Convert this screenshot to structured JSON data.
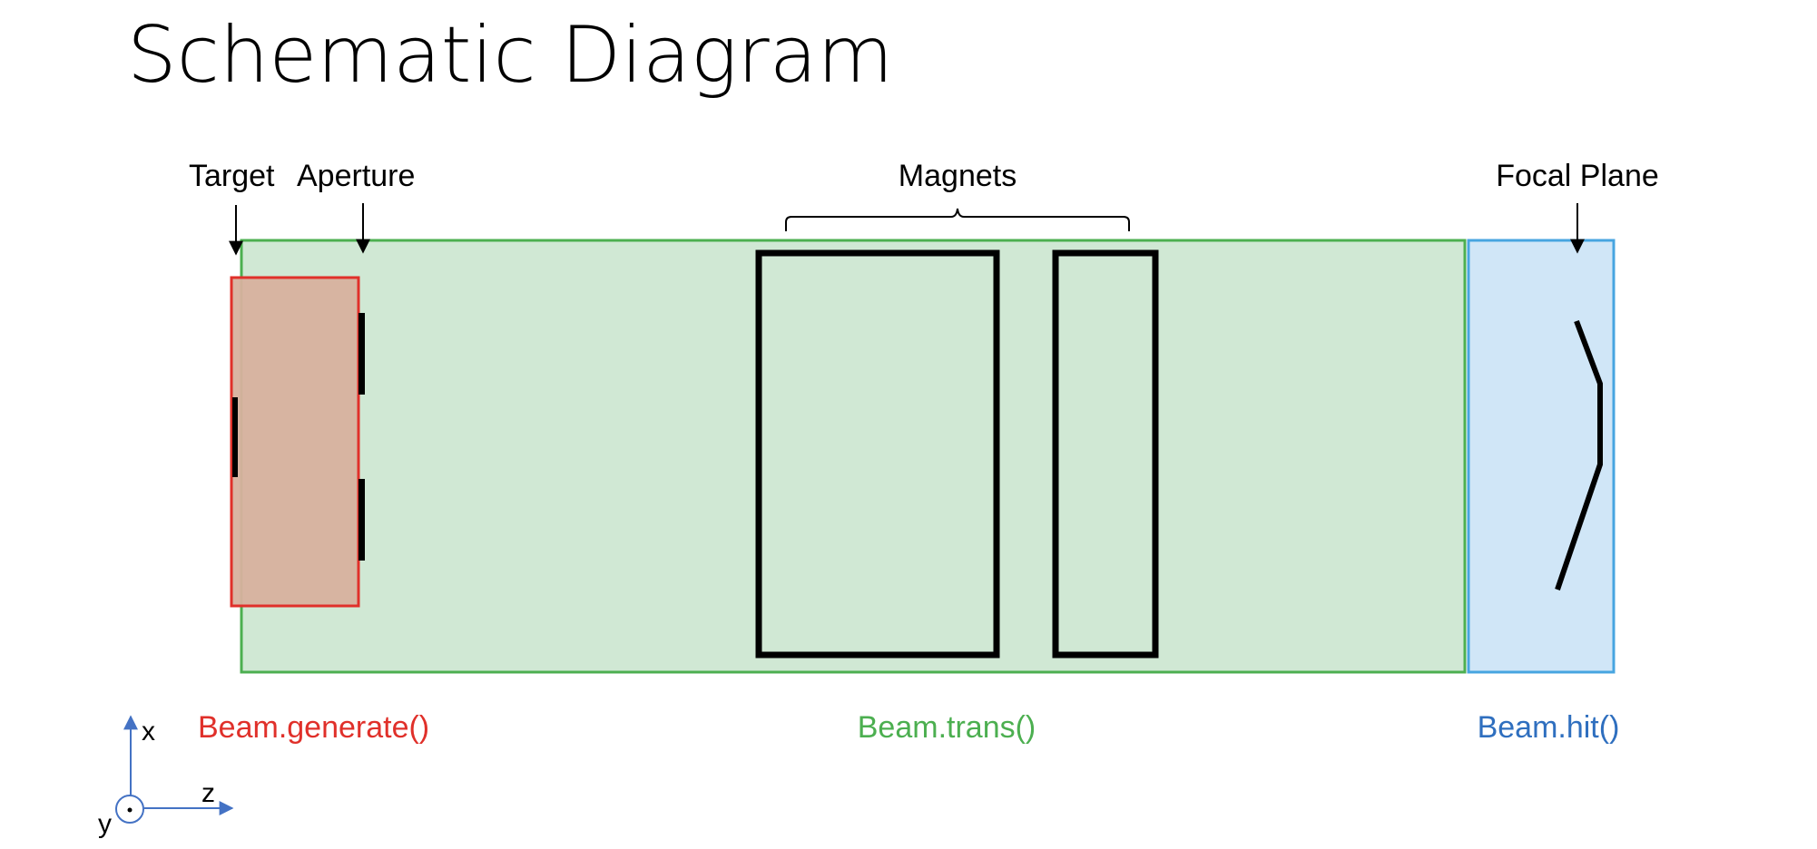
{
  "title": "Schematic Diagram",
  "labels": {
    "target": "Target",
    "aperture": "Aperture",
    "magnets": "Magnets",
    "focal_plane": "Focal Plane"
  },
  "functions": {
    "generate": "Beam.generate()",
    "trans": "Beam.trans()",
    "hit": "Beam.hit()"
  },
  "axes": {
    "x": "x",
    "z": "z",
    "y": "y"
  },
  "colors": {
    "generate": "#e0302a",
    "trans": "#4caf50",
    "hit": "#2f6fbf",
    "transport_fill": "#d0e8d4",
    "transport_border": "#4caf50",
    "focal_fill": "#d0e6f7",
    "focal_border": "#47a5e0",
    "target_fill": "#d7b19e",
    "target_border": "#e0302a",
    "axis": "#4472c4"
  }
}
